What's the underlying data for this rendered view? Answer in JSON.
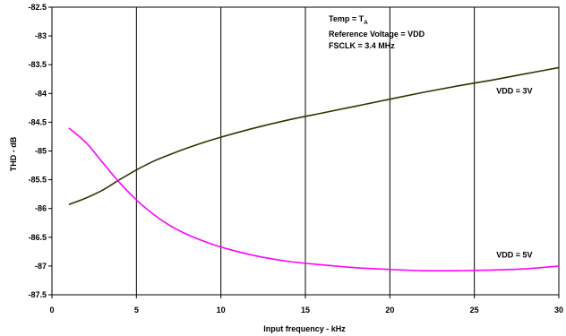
{
  "chart_data": {
    "type": "line",
    "title": "",
    "xlabel": "Input frequency - kHz",
    "ylabel": "THD - dB",
    "xlim": [
      0,
      30
    ],
    "ylim": [
      -87.5,
      -82.5
    ],
    "x_ticks": [
      0,
      5,
      10,
      15,
      20,
      25,
      30
    ],
    "y_ticks": [
      -82.5,
      -83,
      -83.5,
      -84,
      -84.5,
      -85,
      -85.5,
      -86,
      -86.5,
      -87,
      -87.5
    ],
    "x_tick_labels": [
      "0",
      "5",
      "10",
      "15",
      "20",
      "25",
      "30"
    ],
    "y_tick_labels": [
      "-82.5",
      "-83",
      "-83.5",
      "-84",
      "-84.5",
      "-85",
      "-85.5",
      "-86",
      "-86.5",
      "-87",
      "-87.5"
    ],
    "grid": {
      "vertical": true,
      "horizontal": false
    },
    "annotations": {
      "conditions_line1_main": "Temp = T",
      "conditions_line1_sub": "A",
      "conditions_line2": "Reference Voltage = VDD",
      "conditions_line3": "FSCLK = 3.4 MHz"
    },
    "series": [
      {
        "name": "VDD = 3V",
        "color": "#333300",
        "x": [
          1,
          2,
          3,
          4,
          5,
          6,
          7,
          8,
          9,
          10,
          12,
          14,
          16,
          18,
          20,
          22,
          24,
          26,
          28,
          30
        ],
        "y": [
          -85.93,
          -85.82,
          -85.68,
          -85.5,
          -85.33,
          -85.18,
          -85.06,
          -84.95,
          -84.85,
          -84.76,
          -84.6,
          -84.46,
          -84.34,
          -84.22,
          -84.1,
          -83.98,
          -83.87,
          -83.77,
          -83.66,
          -83.55
        ]
      },
      {
        "name": "VDD = 5V",
        "color": "#ff00ff",
        "x": [
          1,
          2,
          3,
          4,
          5,
          6,
          7,
          8,
          9,
          10,
          12,
          14,
          16,
          18,
          20,
          22,
          24,
          26,
          28,
          30
        ],
        "y": [
          -84.6,
          -84.85,
          -85.2,
          -85.55,
          -85.85,
          -86.1,
          -86.3,
          -86.45,
          -86.57,
          -86.67,
          -86.82,
          -86.92,
          -86.98,
          -87.03,
          -87.06,
          -87.08,
          -87.08,
          -87.07,
          -87.05,
          -87.0
        ]
      }
    ],
    "legend_labels": [
      {
        "text": "VDD = 3V",
        "series": 0,
        "x": 26.3,
        "y": -84.0
      },
      {
        "text": "VDD = 5V",
        "series": 1,
        "x": 26.3,
        "y": -86.85
      }
    ]
  }
}
